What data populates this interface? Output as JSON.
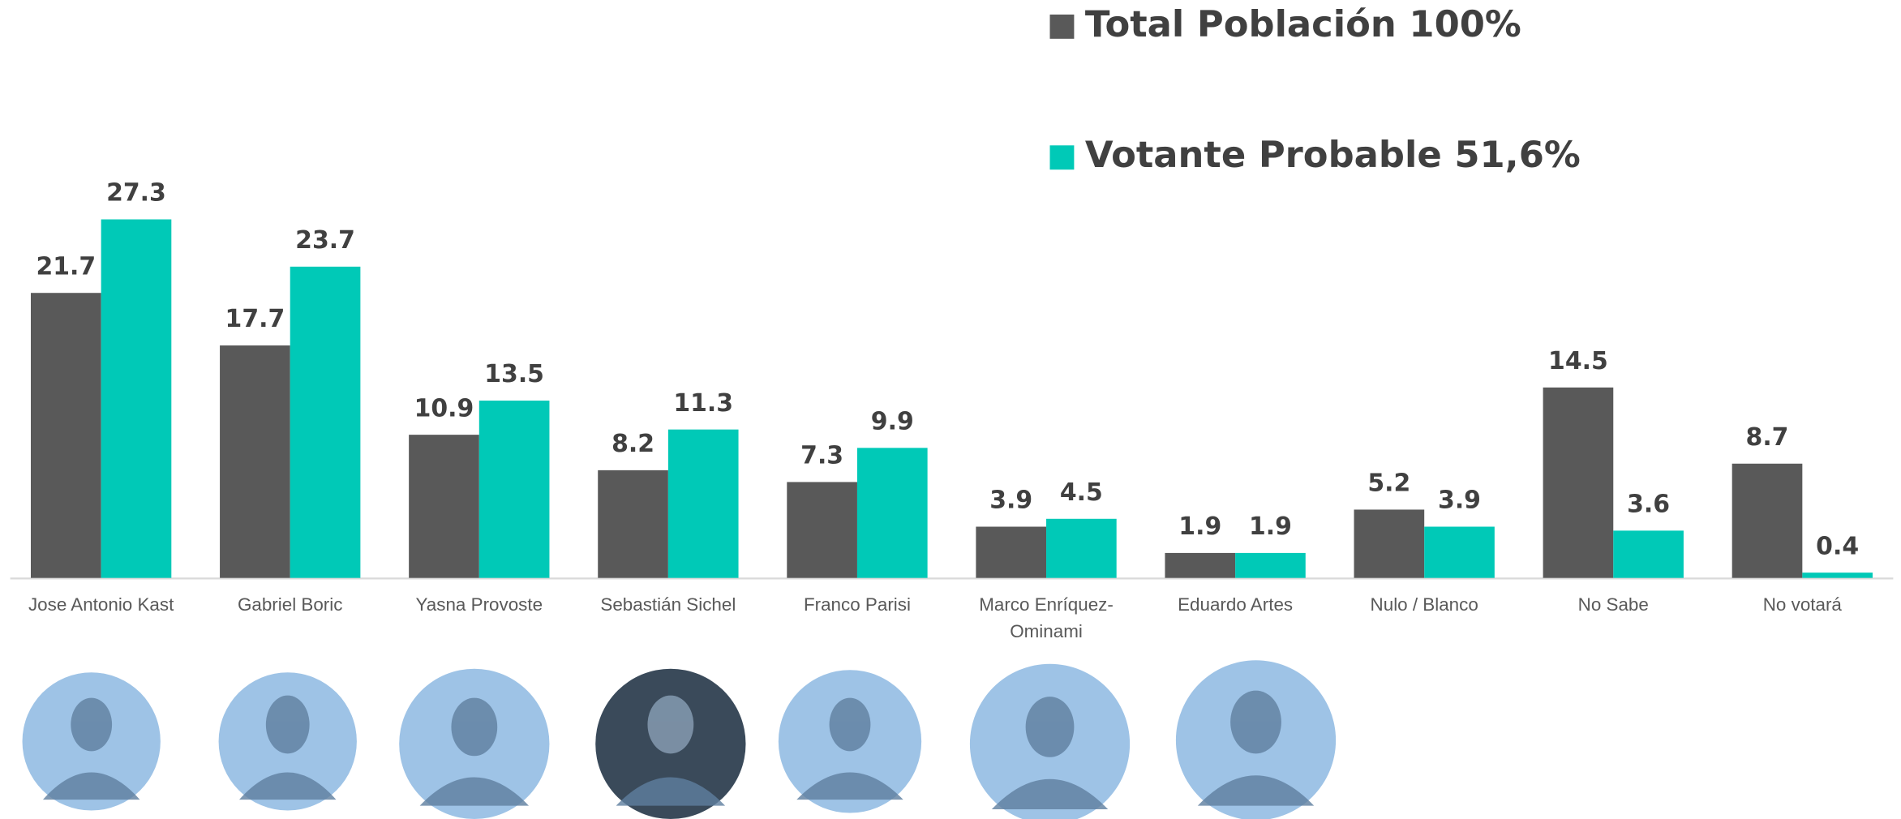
{
  "chart_data": {
    "type": "bar",
    "categories": [
      "Jose Antonio Kast",
      "Gabriel Boric",
      "Yasna Provoste",
      "Sebastián Sichel",
      "Franco Parisi",
      "Marco Enríquez-Ominami",
      "Eduardo Artes",
      "Nulo / Blanco",
      "No Sabe",
      "No votará"
    ],
    "series": [
      {
        "name": "Total Población 100%",
        "color": "#595959",
        "values": [
          21.7,
          17.7,
          10.9,
          8.2,
          7.3,
          3.9,
          1.9,
          5.2,
          14.5,
          8.7
        ]
      },
      {
        "name": "Votante Probable 51,6%",
        "color": "#00c9b7",
        "values": [
          27.3,
          23.7,
          13.5,
          11.3,
          9.9,
          4.5,
          1.9,
          3.9,
          3.6,
          0.4
        ]
      }
    ],
    "ylim": [
      0,
      40
    ]
  }
}
